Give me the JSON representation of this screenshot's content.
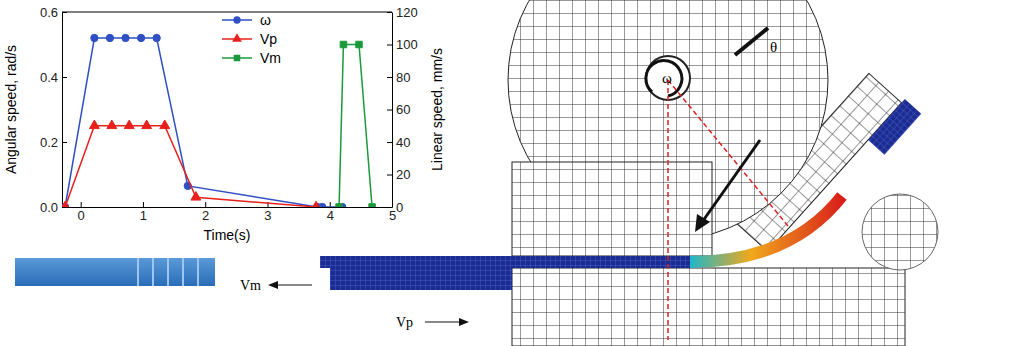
{
  "chart_data": {
    "type": "line",
    "xlabel": "Time(s)",
    "ylabel": "Angular speed, rad/s",
    "y2label": "Linear speed, mm/s",
    "xlim": [
      -0.3,
      5
    ],
    "xticks": [
      0,
      1,
      2,
      3,
      4,
      5
    ],
    "ylim": [
      0,
      0.6
    ],
    "yticks": [
      {
        "value": 0,
        "label": "0.0"
      },
      0.2,
      0.4,
      0.6
    ],
    "y2lim": [
      0,
      120
    ],
    "y2ticks": [
      0,
      20,
      40,
      60,
      80,
      100,
      120
    ],
    "legend": "upper center",
    "series": [
      {
        "name": "ω",
        "color": "#2f4fc4",
        "marker": "circle",
        "x": [
          -0.25,
          0.22,
          0.47,
          0.72,
          0.97,
          1.22,
          1.72,
          3.8,
          3.88,
          4.2
        ],
        "values": [
          0,
          0.52,
          0.52,
          0.52,
          0.52,
          0.52,
          0.065,
          0,
          0,
          0
        ]
      },
      {
        "name": "Vp",
        "color": "#e8201c",
        "marker": "triangle",
        "axis": "y2",
        "x": [
          -0.25,
          0.22,
          0.5,
          0.78,
          1.06,
          1.35,
          1.85,
          3.78
        ],
        "values": [
          0,
          50,
          50,
          50,
          50,
          50,
          6,
          0
        ]
      },
      {
        "name": "Vm",
        "color": "#1a9a3a",
        "marker": "square",
        "axis": "y2",
        "x": [
          4.15,
          4.22,
          4.47,
          4.68
        ],
        "values": [
          0,
          100,
          100,
          0
        ]
      }
    ]
  },
  "diagram": {
    "labels": {
      "omega": "ω",
      "theta": "θ",
      "vm": "Vm",
      "vp": "Vp"
    }
  }
}
